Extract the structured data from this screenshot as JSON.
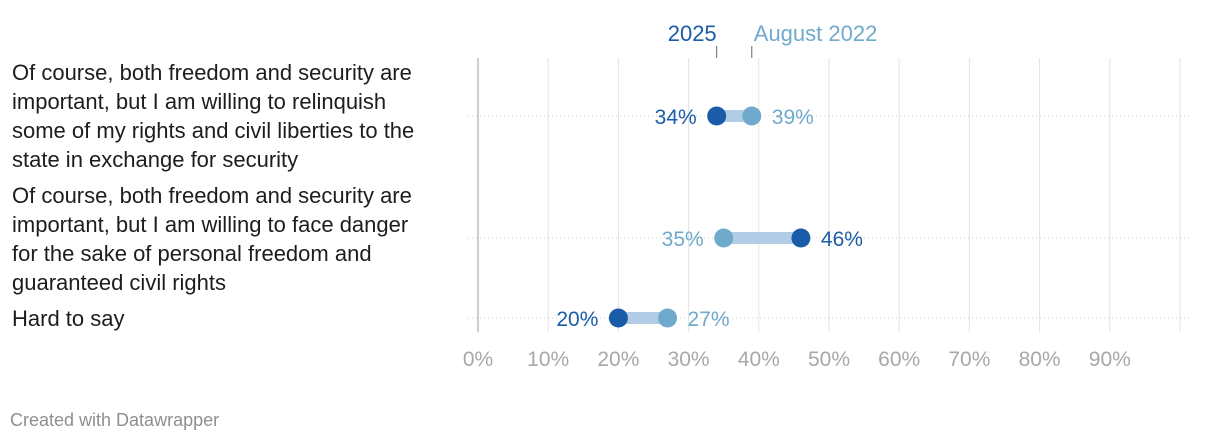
{
  "chart_data": {
    "type": "dot-range",
    "title": "",
    "xlabel": "",
    "ylabel": "",
    "xlim": [
      0,
      100
    ],
    "x_ticks": [
      0,
      10,
      20,
      30,
      40,
      50,
      60,
      70,
      80,
      90
    ],
    "tick_format": "{v}%",
    "grid": true,
    "legend": "top",
    "categories": [
      [
        "Of course, both freedom and security are",
        "important, but I am willing to relinquish",
        "some of my rights and civil liberties to the",
        "state in exchange for security"
      ],
      [
        "Of course, both freedom and security are",
        "important, but I am willing to face danger",
        "for the sake of personal freedom and",
        "guaranteed civil rights"
      ],
      [
        "Hard to say"
      ]
    ],
    "series": [
      {
        "name": "2025",
        "color": "#1a5ca8",
        "values": [
          34,
          46,
          20
        ]
      },
      {
        "name": "August 2022",
        "color": "#6fa9cc",
        "values": [
          39,
          35,
          27
        ]
      }
    ],
    "value_format": "{v}%"
  },
  "footer": {
    "credit": "Created with Datawrapper"
  }
}
